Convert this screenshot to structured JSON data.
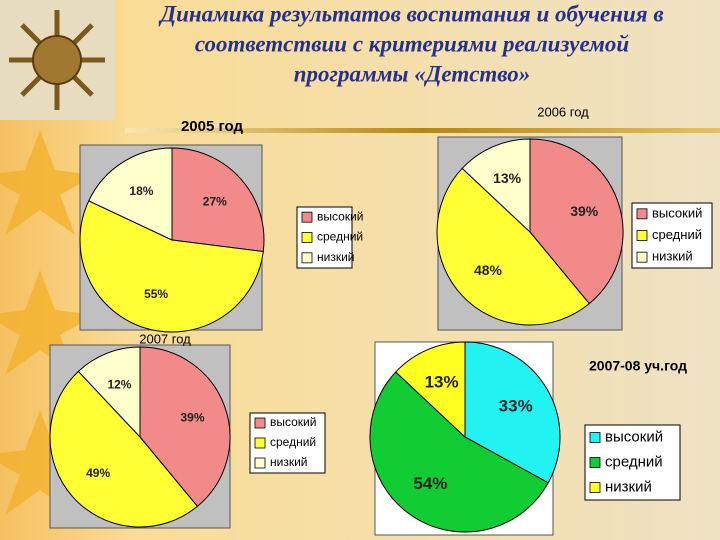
{
  "title": [
    "Динамика результатов воспитания и обучения в",
    "соответствии с критериями реализуемой",
    "программы «Детство»"
  ],
  "chart_data": [
    {
      "type": "pie",
      "title": "2005 год",
      "categories": [
        "высокий",
        "средний",
        "низкий"
      ],
      "values": [
        27,
        55,
        18
      ],
      "value_labels": [
        "27%",
        "55%",
        "18%"
      ],
      "colors": [
        "#f28a8a",
        "#ffff33",
        "#ffffcc"
      ],
      "legend": "right"
    },
    {
      "type": "pie",
      "title": "2006 год",
      "categories": [
        "высокий",
        "средний",
        "низкий"
      ],
      "values": [
        39,
        48,
        13
      ],
      "value_labels": [
        "39%",
        "48%",
        "13%"
      ],
      "colors": [
        "#f28a8a",
        "#ffff33",
        "#ffffcc"
      ],
      "legend": "right"
    },
    {
      "type": "pie",
      "title": "2007 год",
      "categories": [
        "высокий",
        "средний",
        "низкий"
      ],
      "values": [
        39,
        49,
        12
      ],
      "value_labels": [
        "39%",
        "49%",
        "12%"
      ],
      "colors": [
        "#f28a8a",
        "#ffff33",
        "#ffffcc"
      ],
      "legend": "right"
    },
    {
      "type": "pie",
      "title": "2007-08 уч.год",
      "categories": [
        "высокий",
        "средний",
        "низкий"
      ],
      "values": [
        33,
        54,
        13
      ],
      "value_labels": [
        "33%",
        "54%",
        "13%"
      ],
      "colors": [
        "#22f2f2",
        "#11cc33",
        "#ffff22"
      ],
      "legend": "right"
    }
  ]
}
